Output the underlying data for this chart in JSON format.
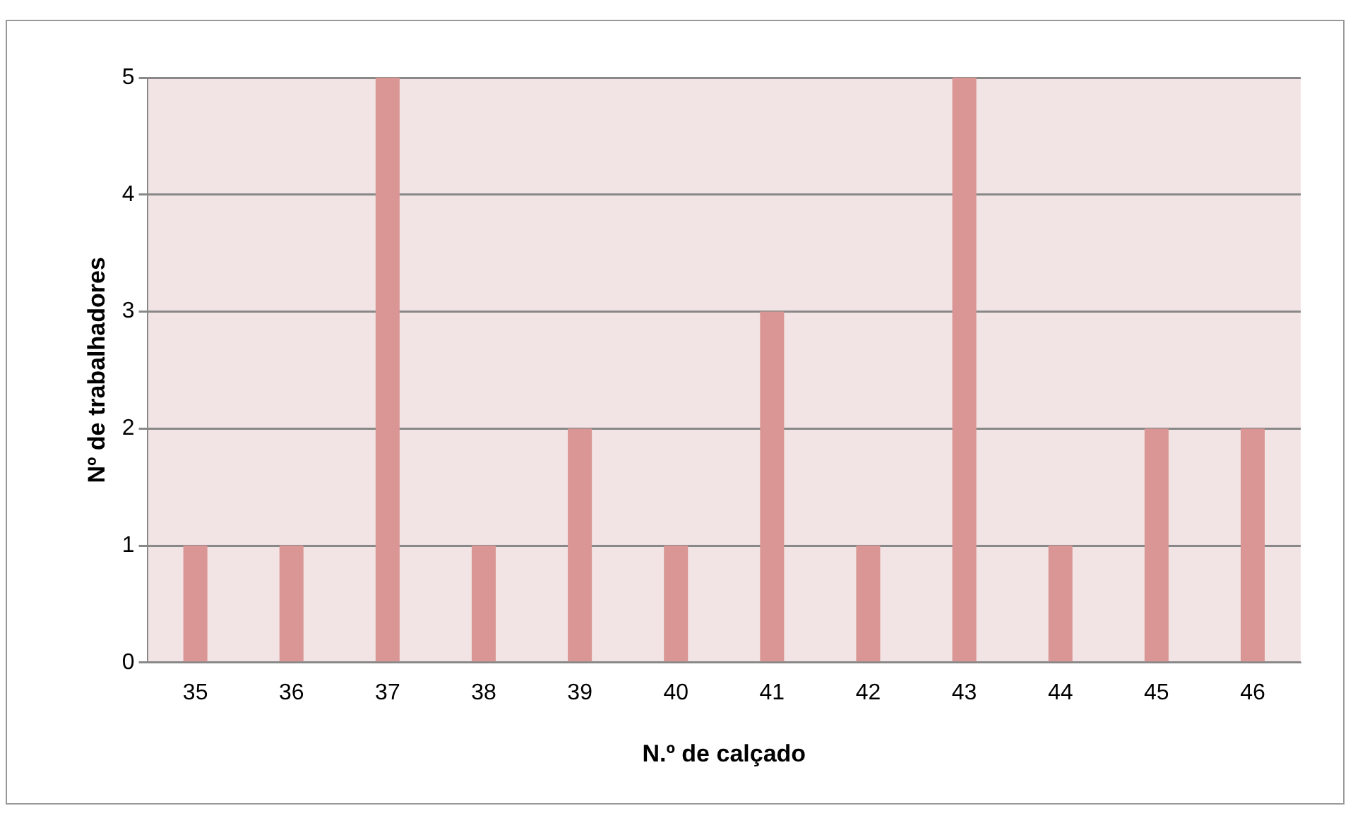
{
  "chart_data": {
    "type": "bar",
    "xlabel": "N.º de calçado",
    "ylabel": "Nº de trabalhadores",
    "categories": [
      "35",
      "36",
      "37",
      "38",
      "39",
      "40",
      "41",
      "42",
      "43",
      "44",
      "45",
      "46"
    ],
    "values": [
      1,
      1,
      5,
      1,
      2,
      1,
      3,
      1,
      5,
      1,
      2,
      2
    ],
    "color": "#d99694",
    "ylim": [
      0,
      5
    ],
    "yticks": [
      0,
      1,
      2,
      3,
      4,
      5
    ],
    "grid": "y"
  }
}
